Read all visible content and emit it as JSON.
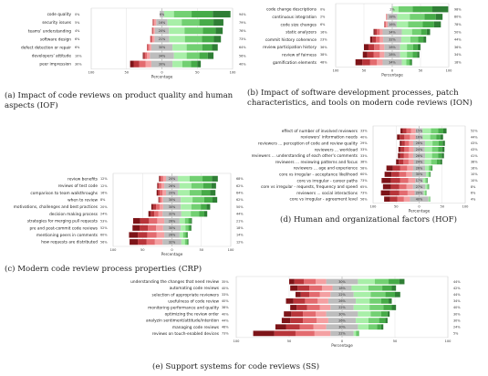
{
  "colors": {
    "neg": [
      "#7d1418",
      "#b8353a",
      "#e36b6f",
      "#f4a0a2"
    ],
    "neutral": "#bdbdbd",
    "pos": [
      "#a8efa8",
      "#72d072",
      "#46ab48",
      "#2f7e35"
    ]
  },
  "chart_data": [
    {
      "id": "iof",
      "type": "bar",
      "caption": "(a) Impact of code reviews on product quality and human aspects (IOF)",
      "xlabel": "Percentage",
      "xticks": [
        "100",
        "50",
        "0",
        "50",
        "100"
      ],
      "rows": [
        {
          "label": "code quality",
          "left": "0%",
          "mid": "6%",
          "right": "94%",
          "neg": [
            0,
            0,
            0,
            0
          ],
          "neu": 6,
          "pos": [
            14,
            25,
            30,
            25
          ]
        },
        {
          "label": "security issues",
          "left": "5%",
          "mid": "16%",
          "right": "79%",
          "neg": [
            0,
            1,
            1,
            3
          ],
          "neu": 16,
          "pos": [
            20,
            25,
            20,
            14
          ]
        },
        {
          "label": "teams' understanding",
          "left": "4%",
          "mid": "20%",
          "right": "76%",
          "neg": [
            0,
            1,
            1,
            2
          ],
          "neu": 20,
          "pos": [
            22,
            26,
            18,
            10
          ]
        },
        {
          "label": "software design",
          "left": "6%",
          "mid": "21%",
          "right": "73%",
          "neg": [
            0,
            1,
            2,
            3
          ],
          "neu": 21,
          "pos": [
            22,
            24,
            17,
            10
          ]
        },
        {
          "label": "defect detection or repair",
          "left": "6%",
          "mid": "30%",
          "right": "64%",
          "neg": [
            0,
            1,
            2,
            3
          ],
          "neu": 30,
          "pos": [
            20,
            22,
            14,
            8
          ]
        },
        {
          "label": "developers' attitude",
          "left": "10%",
          "mid": "34%",
          "right": "56%",
          "neg": [
            1,
            2,
            3,
            4
          ],
          "neu": 34,
          "pos": [
            18,
            18,
            12,
            8
          ]
        },
        {
          "label": "peer impression",
          "left": "30%",
          "mid": "30%",
          "right": "40%",
          "neg": [
            5,
            8,
            9,
            8
          ],
          "neu": 30,
          "pos": [
            14,
            12,
            9,
            5
          ]
        }
      ]
    },
    {
      "id": "ion",
      "type": "bar",
      "caption": "(b) Impact of software development processes, patch characteristics, and tools on modern code reviews (ION)",
      "xlabel": "Percentage",
      "xticks": [
        "100",
        "50",
        "0",
        "50",
        "100"
      ],
      "rows": [
        {
          "label": "code change descriptions",
          "left": "0%",
          "mid": "2%",
          "right": "98%",
          "neg": [
            0,
            0,
            0,
            0
          ],
          "neu": 2,
          "pos": [
            10,
            25,
            35,
            28
          ]
        },
        {
          "label": "continuous integration",
          "left": "2%",
          "mid": "18%",
          "right": "80%",
          "neg": [
            0,
            0,
            1,
            1
          ],
          "neu": 18,
          "pos": [
            22,
            26,
            20,
            12
          ]
        },
        {
          "label": "code size changes",
          "left": "6%",
          "mid": "16%",
          "right": "78%",
          "neg": [
            0,
            1,
            2,
            3
          ],
          "neu": 16,
          "pos": [
            20,
            26,
            20,
            12
          ]
        },
        {
          "label": "static analyzers",
          "left": "16%",
          "mid": "34%",
          "right": "50%",
          "neg": [
            2,
            4,
            5,
            5
          ],
          "neu": 34,
          "pos": [
            18,
            16,
            10,
            6
          ]
        },
        {
          "label": "commit history coherence",
          "left": "23%",
          "mid": "32%",
          "right": "44%",
          "neg": [
            4,
            6,
            7,
            6
          ],
          "neu": 32,
          "pos": [
            16,
            14,
            9,
            5
          ]
        },
        {
          "label": "review participation history",
          "left": "36%",
          "mid": "28%",
          "right": "36%",
          "neg": [
            8,
            10,
            10,
            8
          ],
          "neu": 28,
          "pos": [
            12,
            11,
            8,
            5
          ]
        },
        {
          "label": "review of fairness",
          "left": "38%",
          "mid": "28%",
          "right": "34%",
          "neg": [
            8,
            11,
            11,
            8
          ],
          "neu": 28,
          "pos": [
            12,
            10,
            8,
            4
          ]
        },
        {
          "label": "gamification elements",
          "left": "48%",
          "mid": "34%",
          "right": "18%",
          "neg": [
            12,
            14,
            12,
            10
          ],
          "neu": 34,
          "pos": [
            8,
            5,
            3,
            2
          ]
        }
      ]
    },
    {
      "id": "hof",
      "type": "bar",
      "caption": "(d) Human and organizational factors (HOF)",
      "xlabel": "Percentage",
      "xticks": [
        "100",
        "50",
        "0",
        "50",
        "100"
      ],
      "rows": [
        {
          "label": "effect of number of involved reviewers",
          "left": "33%",
          "mid": "15%",
          "right": "52%",
          "neg": [
            5,
            8,
            10,
            10
          ],
          "neu": 15,
          "pos": [
            18,
            16,
            11,
            7
          ]
        },
        {
          "label": "reviewers' information needs",
          "left": "40%",
          "mid": "16%",
          "right": "44%",
          "neg": [
            6,
            10,
            12,
            12
          ],
          "neu": 16,
          "pos": [
            16,
            13,
            9,
            6
          ]
        },
        {
          "label": "reviewers ... perception of code and review quality",
          "left": "29%",
          "mid": "26%",
          "right": "43%",
          "neg": [
            4,
            7,
            9,
            9
          ],
          "neu": 26,
          "pos": [
            16,
            13,
            9,
            5
          ]
        },
        {
          "label": "reviewers ... workload",
          "left": "33%",
          "mid": "24%",
          "right": "43%",
          "neg": [
            5,
            8,
            10,
            10
          ],
          "neu": 24,
          "pos": [
            16,
            13,
            9,
            5
          ]
        },
        {
          "label": "reviewers ... understanding of each other's comments",
          "left": "33%",
          "mid": "26%",
          "right": "41%",
          "neg": [
            5,
            8,
            10,
            10
          ],
          "neu": 26,
          "pos": [
            15,
            13,
            8,
            5
          ]
        },
        {
          "label": "reviewers ... reviewing patterns and focus",
          "left": "38%",
          "mid": "24%",
          "right": "38%",
          "neg": [
            6,
            10,
            11,
            11
          ],
          "neu": 24,
          "pos": [
            14,
            12,
            8,
            4
          ]
        },
        {
          "label": "reviewers ... age and experience",
          "left": "58%",
          "mid": "26%",
          "right": "16%",
          "neg": [
            14,
            16,
            15,
            13
          ],
          "neu": 26,
          "pos": [
            8,
            4,
            3,
            1
          ]
        },
        {
          "label": "core vs irregular - acceptance likelihood",
          "left": "60%",
          "mid": "30%",
          "right": "10%",
          "neg": [
            15,
            17,
            15,
            13
          ],
          "neu": 30,
          "pos": [
            5,
            3,
            1,
            1
          ]
        },
        {
          "label": "core vs irregular - career paths",
          "left": "73%",
          "mid": "17%",
          "right": "10%",
          "neg": [
            20,
            20,
            18,
            15
          ],
          "neu": 17,
          "pos": [
            5,
            3,
            1,
            1
          ]
        },
        {
          "label": "core vs irregular - requests, frequency and speed",
          "left": "65%",
          "mid": "27%",
          "right": "8%",
          "neg": [
            17,
            18,
            16,
            14
          ],
          "neu": 27,
          "pos": [
            4,
            2,
            1,
            1
          ]
        },
        {
          "label": "reviewers ... social interactions",
          "left": "73%",
          "mid": "20%",
          "right": "6%",
          "neg": [
            20,
            20,
            18,
            15
          ],
          "neu": 20,
          "pos": [
            3,
            2,
            1,
            0
          ]
        },
        {
          "label": "core vs irregular - agreement level",
          "left": "56%",
          "mid": "40%",
          "right": "4%",
          "neg": [
            13,
            16,
            14,
            13
          ],
          "neu": 40,
          "pos": [
            2,
            1,
            1,
            0
          ]
        }
      ]
    },
    {
      "id": "crp",
      "type": "bar",
      "caption": "(c) Modern code review process properties (CRP)",
      "xlabel": "Percentage",
      "xticks": [
        "100",
        "50",
        "0",
        "50",
        "100"
      ],
      "rows": [
        {
          "label": "review benefits",
          "left": "12%",
          "mid": "20%",
          "right": "68%",
          "neg": [
            1,
            2,
            4,
            5
          ],
          "neu": 20,
          "pos": [
            20,
            22,
            16,
            10
          ]
        },
        {
          "label": "reviews of test code",
          "left": "12%",
          "mid": "26%",
          "right": "62%",
          "neg": [
            1,
            2,
            4,
            5
          ],
          "neu": 26,
          "pos": [
            20,
            20,
            14,
            8
          ]
        },
        {
          "label": "comparison to team walkthroughs",
          "left": "16%",
          "mid": "20%",
          "right": "64%",
          "neg": [
            2,
            3,
            5,
            6
          ],
          "neu": 20,
          "pos": [
            20,
            20,
            15,
            9
          ]
        },
        {
          "label": "when to review",
          "left": "8%",
          "mid": "30%",
          "right": "62%",
          "neg": [
            1,
            1,
            3,
            3
          ],
          "neu": 30,
          "pos": [
            20,
            20,
            14,
            8
          ]
        },
        {
          "label": "motivations, challenges and best practices",
          "left": "20%",
          "mid": "30%",
          "right": "50%",
          "neg": [
            3,
            5,
            6,
            6
          ],
          "neu": 30,
          "pos": [
            18,
            16,
            10,
            6
          ]
        },
        {
          "label": "decision making process",
          "left": "24%",
          "mid": "32%",
          "right": "44%",
          "neg": [
            4,
            6,
            7,
            7
          ],
          "neu": 32,
          "pos": [
            16,
            14,
            9,
            5
          ]
        },
        {
          "label": "strategies for merging pull requests",
          "left": "53%",
          "mid": "26%",
          "right": "21%",
          "neg": [
            12,
            15,
            14,
            12
          ],
          "neu": 26,
          "pos": [
            9,
            6,
            4,
            2
          ]
        },
        {
          "label": "pre and post-commit code reviews",
          "left": "52%",
          "mid": "30%",
          "right": "18%",
          "neg": [
            12,
            14,
            14,
            12
          ],
          "neu": 30,
          "pos": [
            8,
            5,
            3,
            2
          ]
        },
        {
          "label": "mentioning peers in comments",
          "left": "60%",
          "mid": "26%",
          "right": "14%",
          "neg": [
            15,
            16,
            16,
            13
          ],
          "neu": 26,
          "pos": [
            6,
            4,
            3,
            1
          ]
        },
        {
          "label": "how requests are distributed",
          "left": "56%",
          "mid": "32%",
          "right": "12%",
          "neg": [
            14,
            15,
            14,
            13
          ],
          "neu": 32,
          "pos": [
            6,
            3,
            2,
            1
          ]
        }
      ]
    },
    {
      "id": "ss",
      "type": "bar",
      "caption": "(e) Support systems for code reviews (SS)",
      "xlabel": "Percentage",
      "xticks": [
        "100",
        "50",
        "0",
        "50",
        "100"
      ],
      "rows": [
        {
          "label": "understanding the changes that need review",
          "left": "35%",
          "mid": "30%",
          "right": "44%",
          "neg": [
            5,
            9,
            11,
            10
          ],
          "neu": 30,
          "pos": [
            16,
            13,
            10,
            5
          ]
        },
        {
          "label": "automating code reviews",
          "left": "40%",
          "mid": "18%",
          "right": "42%",
          "neg": [
            7,
            11,
            12,
            10
          ],
          "neu": 18,
          "pos": [
            16,
            13,
            9,
            4
          ]
        },
        {
          "label": "selection of appropriate reviewers",
          "left": "33%",
          "mid": "22%",
          "right": "44%",
          "neg": [
            5,
            8,
            10,
            10
          ],
          "neu": 22,
          "pos": [
            16,
            14,
            9,
            5
          ]
        },
        {
          "label": "usefulness of code review",
          "left": "40%",
          "mid": "26%",
          "right": "34%",
          "neg": [
            7,
            11,
            12,
            10
          ],
          "neu": 26,
          "pos": [
            13,
            11,
            7,
            3
          ]
        },
        {
          "label": "monitoring performance and quality",
          "left": "38%",
          "mid": "22%",
          "right": "40%",
          "neg": [
            6,
            10,
            12,
            10
          ],
          "neu": 22,
          "pos": [
            15,
            13,
            8,
            4
          ]
        },
        {
          "label": "optimizing the review order",
          "left": "40%",
          "mid": "30%",
          "right": "30%",
          "neg": [
            7,
            11,
            12,
            10
          ],
          "neu": 30,
          "pos": [
            12,
            10,
            6,
            2
          ]
        },
        {
          "label": "analyzin sentiment/attitude/intention",
          "left": "44%",
          "mid": "26%",
          "right": "30%",
          "neg": [
            8,
            12,
            13,
            11
          ],
          "neu": 26,
          "pos": [
            12,
            10,
            6,
            2
          ]
        },
        {
          "label": "managing code reviews",
          "left": "48%",
          "mid": "30%",
          "right": "24%",
          "neg": [
            10,
            13,
            13,
            12
          ],
          "neu": 30,
          "pos": [
            10,
            8,
            4,
            2
          ]
        },
        {
          "label": "reviews on touch-enabled devices",
          "left": "73%",
          "mid": "22%",
          "right": "5%",
          "neg": [
            20,
            20,
            18,
            15
          ],
          "neu": 22,
          "pos": [
            2,
            2,
            1,
            0
          ]
        }
      ]
    }
  ]
}
